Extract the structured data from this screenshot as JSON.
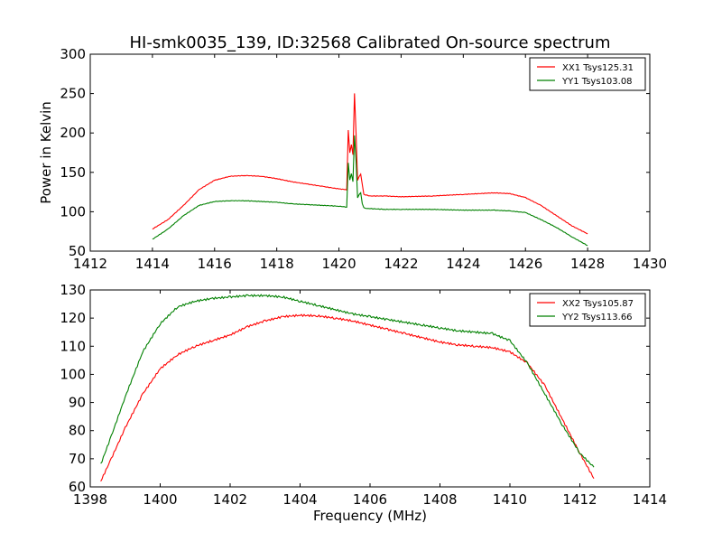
{
  "figure": {
    "title": "HI-smk0035_139, ID:32568 Calibrated On-source spectrum",
    "xlabel": "Frequency (MHz)",
    "ylabel": "Power in Kelvin"
  },
  "colors": {
    "red": "#ff0000",
    "green": "#008000"
  },
  "chart_data": [
    {
      "type": "line",
      "xlim": [
        1412,
        1430
      ],
      "ylim": [
        50,
        300
      ],
      "xticks": [
        1412,
        1414,
        1416,
        1418,
        1420,
        1422,
        1424,
        1426,
        1428,
        1430
      ],
      "yticks": [
        50,
        100,
        150,
        200,
        250,
        300
      ],
      "legend_position": "top-right",
      "series": [
        {
          "name": "XX1 Tsys125.31",
          "color": "#ff0000",
          "x": [
            1414,
            1414.5,
            1415,
            1415.5,
            1416,
            1416.5,
            1417,
            1417.5,
            1418,
            1418.5,
            1419,
            1419.5,
            1420,
            1420.25,
            1420.3,
            1420.35,
            1420.4,
            1420.45,
            1420.5,
            1420.55,
            1420.6,
            1420.65,
            1420.7,
            1420.75,
            1420.8,
            1420.9,
            1421,
            1421.5,
            1422,
            1423,
            1424,
            1425,
            1425.5,
            1426,
            1426.5,
            1427,
            1427.5,
            1428
          ],
          "y": [
            78,
            90,
            108,
            128,
            140,
            145,
            146,
            145,
            142,
            138,
            135,
            132,
            129,
            128,
            204,
            175,
            185,
            172,
            250,
            200,
            140,
            145,
            148,
            135,
            122,
            121,
            120,
            120,
            119,
            120,
            122,
            124,
            123,
            118,
            108,
            95,
            82,
            72
          ]
        },
        {
          "name": "YY1 Tsys103.08",
          "color": "#008000",
          "x": [
            1414,
            1414.5,
            1415,
            1415.5,
            1416,
            1416.5,
            1417,
            1417.5,
            1418,
            1418.5,
            1419,
            1419.5,
            1420,
            1420.25,
            1420.3,
            1420.35,
            1420.4,
            1420.45,
            1420.5,
            1420.55,
            1420.6,
            1420.65,
            1420.7,
            1420.75,
            1420.8,
            1420.9,
            1421,
            1421.5,
            1422,
            1423,
            1424,
            1425,
            1425.5,
            1426,
            1426.5,
            1427,
            1427.5,
            1428
          ],
          "y": [
            65,
            78,
            95,
            108,
            113,
            114,
            114,
            113,
            112,
            110,
            109,
            108,
            107,
            106,
            162,
            140,
            148,
            138,
            197,
            165,
            118,
            122,
            124,
            110,
            105,
            104,
            104,
            103,
            103,
            103,
            102,
            102,
            101,
            99,
            90,
            80,
            68,
            57
          ]
        }
      ]
    },
    {
      "type": "line",
      "xlim": [
        1398,
        1414
      ],
      "ylim": [
        60,
        130
      ],
      "xticks": [
        1398,
        1400,
        1402,
        1404,
        1406,
        1408,
        1410,
        1412,
        1414
      ],
      "yticks": [
        60,
        70,
        80,
        90,
        100,
        110,
        120,
        130
      ],
      "legend_position": "top-right",
      "series": [
        {
          "name": "XX2 Tsys105.87",
          "color": "#ff0000",
          "x": [
            1398.3,
            1398.6,
            1399,
            1399.5,
            1400,
            1400.5,
            1401,
            1401.5,
            1402,
            1402.5,
            1403,
            1403.5,
            1404,
            1404.5,
            1405,
            1405.5,
            1406,
            1406.5,
            1407,
            1407.5,
            1408,
            1408.5,
            1409,
            1409.5,
            1410,
            1410.5,
            1411,
            1411.5,
            1412,
            1412.4
          ],
          "y": [
            62,
            70,
            81,
            93,
            102,
            107,
            110,
            112,
            114,
            117,
            119,
            120.5,
            121,
            120.8,
            120,
            119,
            117.5,
            116,
            114.5,
            113,
            111.5,
            110.5,
            110,
            109.5,
            108,
            104,
            96,
            84,
            72,
            63
          ]
        },
        {
          "name": "YY2 Tsys113.66",
          "color": "#008000",
          "x": [
            1398.3,
            1398.6,
            1399,
            1399.5,
            1400,
            1400.5,
            1401,
            1401.5,
            1402,
            1402.5,
            1403,
            1403.5,
            1404,
            1404.5,
            1405,
            1405.5,
            1406,
            1406.5,
            1407,
            1407.5,
            1408,
            1408.5,
            1409,
            1409.5,
            1410,
            1410.5,
            1411,
            1411.5,
            1412,
            1412.4
          ],
          "y": [
            68,
            78,
            92,
            108,
            118,
            124,
            126,
            127,
            127.5,
            128,
            128,
            127.5,
            126,
            124.5,
            123,
            121.5,
            120.5,
            119.5,
            118.5,
            117.5,
            116.5,
            115.5,
            115,
            114.5,
            112,
            104,
            93,
            82,
            72,
            67
          ]
        }
      ]
    }
  ]
}
